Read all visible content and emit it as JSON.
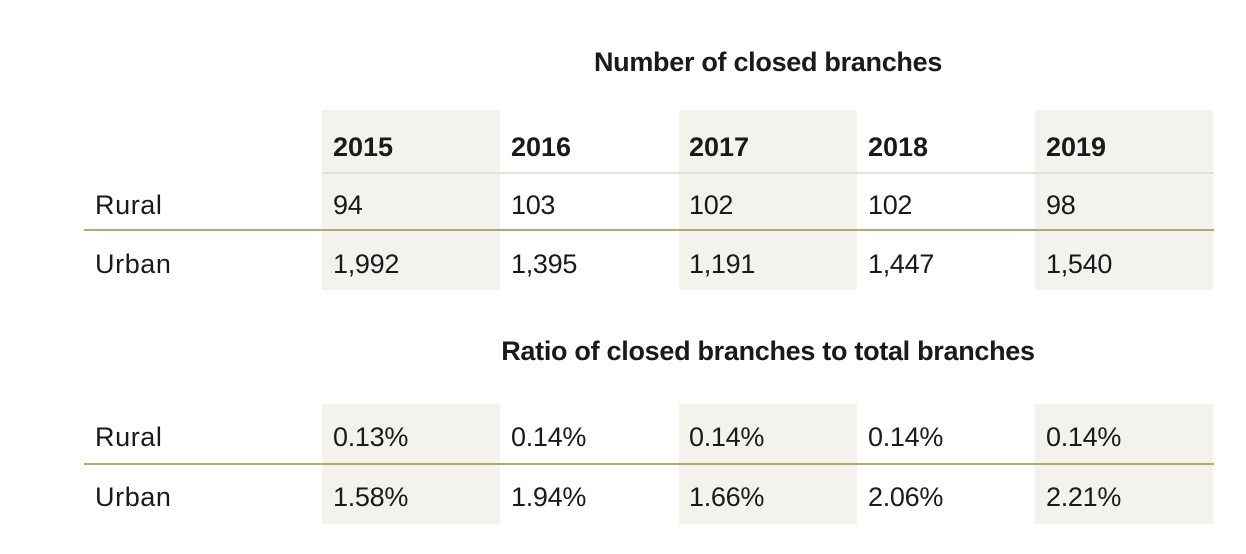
{
  "chart_data": [
    {
      "type": "table",
      "title": "Number of closed branches",
      "columns": [
        "2015",
        "2016",
        "2017",
        "2018",
        "2019"
      ],
      "rows": [
        {
          "label": "Rural",
          "values": [
            "94",
            "103",
            "102",
            "102",
            "98"
          ]
        },
        {
          "label": "Urban",
          "values": [
            "1,992",
            "1,395",
            "1,191",
            "1,447",
            "1,540"
          ]
        }
      ]
    },
    {
      "type": "table",
      "title": "Ratio of closed branches to total branches",
      "columns": [
        "2015",
        "2016",
        "2017",
        "2018",
        "2019"
      ],
      "rows": [
        {
          "label": "Rural",
          "values": [
            "0.13%",
            "0.14%",
            "0.14%",
            "0.14%",
            "0.14%"
          ]
        },
        {
          "label": "Urban",
          "values": [
            "1.58%",
            "1.94%",
            "1.66%",
            "2.06%",
            "2.21%"
          ]
        }
      ]
    }
  ],
  "colors": {
    "shaded_column": "#f3f2ed",
    "row_divider": "#b6a677",
    "header_divider": "#e2e1dc"
  }
}
